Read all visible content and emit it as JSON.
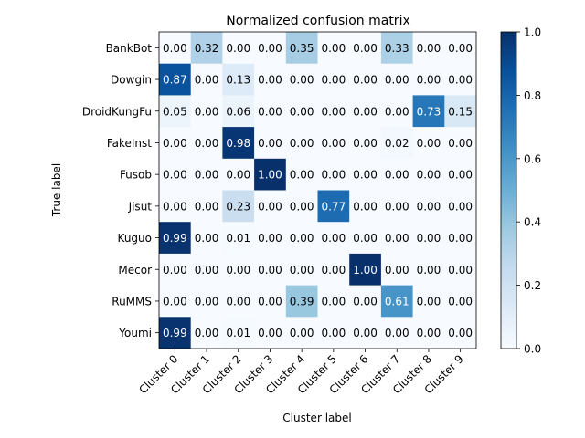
{
  "chart_data": {
    "type": "heatmap",
    "title": "Normalized confusion matrix",
    "xlabel": "Cluster label",
    "ylabel": "True label",
    "x_categories": [
      "Cluster 0",
      "Cluster 1",
      "Cluster 2",
      "Cluster 3",
      "Cluster 4",
      "Cluster 5",
      "Cluster 6",
      "Cluster 7",
      "Cluster 8",
      "Cluster 9"
    ],
    "y_categories": [
      "BankBot",
      "Dowgin",
      "DroidKungFu",
      "FakeInst",
      "Fusob",
      "Jisut",
      "Kuguo",
      "Mecor",
      "RuMMS",
      "Youmi"
    ],
    "values": [
      [
        0.0,
        0.32,
        0.0,
        0.0,
        0.35,
        0.0,
        0.0,
        0.33,
        0.0,
        0.0
      ],
      [
        0.87,
        0.0,
        0.13,
        0.0,
        0.0,
        0.0,
        0.0,
        0.0,
        0.0,
        0.0
      ],
      [
        0.05,
        0.0,
        0.06,
        0.0,
        0.0,
        0.0,
        0.0,
        0.0,
        0.73,
        0.15
      ],
      [
        0.0,
        0.0,
        0.98,
        0.0,
        0.0,
        0.0,
        0.0,
        0.02,
        0.0,
        0.0
      ],
      [
        0.0,
        0.0,
        0.0,
        1.0,
        0.0,
        0.0,
        0.0,
        0.0,
        0.0,
        0.0
      ],
      [
        0.0,
        0.0,
        0.23,
        0.0,
        0.0,
        0.77,
        0.0,
        0.0,
        0.0,
        0.0
      ],
      [
        0.99,
        0.0,
        0.01,
        0.0,
        0.0,
        0.0,
        0.0,
        0.0,
        0.0,
        0.0
      ],
      [
        0.0,
        0.0,
        0.0,
        0.0,
        0.0,
        0.0,
        1.0,
        0.0,
        0.0,
        0.0
      ],
      [
        0.0,
        0.0,
        0.0,
        0.0,
        0.39,
        0.0,
        0.0,
        0.61,
        0.0,
        0.0
      ],
      [
        0.99,
        0.0,
        0.01,
        0.0,
        0.0,
        0.0,
        0.0,
        0.0,
        0.0,
        0.0
      ]
    ],
    "value_range": [
      0,
      1
    ],
    "colormap": "Blues",
    "colorbar_ticks": [
      "0.0",
      "0.2",
      "0.4",
      "0.6",
      "0.8",
      "1.0"
    ],
    "colorbar_tick_values": [
      0,
      0.2,
      0.4,
      0.6,
      0.8,
      1.0
    ]
  }
}
